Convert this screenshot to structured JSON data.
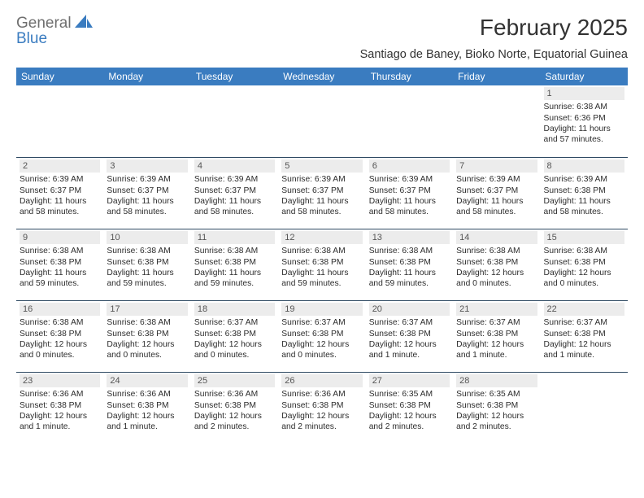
{
  "brand": {
    "word1": "General",
    "word2": "Blue"
  },
  "title": "February 2025",
  "subtitle": "Santiago de Baney, Bioko Norte, Equatorial Guinea",
  "colors": {
    "header_bg": "#3a7cc0",
    "header_text": "#ffffff",
    "week_border": "#2f4a63",
    "daynum_bg": "#ececec",
    "body_text": "#2c2c2c",
    "title_text": "#323232"
  },
  "dayHeaders": [
    "Sunday",
    "Monday",
    "Tuesday",
    "Wednesday",
    "Thursday",
    "Friday",
    "Saturday"
  ],
  "weeks": [
    [
      {
        "n": "",
        "l1": "",
        "l2": "",
        "l3": "",
        "l4": "",
        "empty": true
      },
      {
        "n": "",
        "l1": "",
        "l2": "",
        "l3": "",
        "l4": "",
        "empty": true
      },
      {
        "n": "",
        "l1": "",
        "l2": "",
        "l3": "",
        "l4": "",
        "empty": true
      },
      {
        "n": "",
        "l1": "",
        "l2": "",
        "l3": "",
        "l4": "",
        "empty": true
      },
      {
        "n": "",
        "l1": "",
        "l2": "",
        "l3": "",
        "l4": "",
        "empty": true
      },
      {
        "n": "",
        "l1": "",
        "l2": "",
        "l3": "",
        "l4": "",
        "empty": true
      },
      {
        "n": "1",
        "l1": "Sunrise: 6:38 AM",
        "l2": "Sunset: 6:36 PM",
        "l3": "Daylight: 11 hours",
        "l4": "and 57 minutes."
      }
    ],
    [
      {
        "n": "2",
        "l1": "Sunrise: 6:39 AM",
        "l2": "Sunset: 6:37 PM",
        "l3": "Daylight: 11 hours",
        "l4": "and 58 minutes."
      },
      {
        "n": "3",
        "l1": "Sunrise: 6:39 AM",
        "l2": "Sunset: 6:37 PM",
        "l3": "Daylight: 11 hours",
        "l4": "and 58 minutes."
      },
      {
        "n": "4",
        "l1": "Sunrise: 6:39 AM",
        "l2": "Sunset: 6:37 PM",
        "l3": "Daylight: 11 hours",
        "l4": "and 58 minutes."
      },
      {
        "n": "5",
        "l1": "Sunrise: 6:39 AM",
        "l2": "Sunset: 6:37 PM",
        "l3": "Daylight: 11 hours",
        "l4": "and 58 minutes."
      },
      {
        "n": "6",
        "l1": "Sunrise: 6:39 AM",
        "l2": "Sunset: 6:37 PM",
        "l3": "Daylight: 11 hours",
        "l4": "and 58 minutes."
      },
      {
        "n": "7",
        "l1": "Sunrise: 6:39 AM",
        "l2": "Sunset: 6:37 PM",
        "l3": "Daylight: 11 hours",
        "l4": "and 58 minutes."
      },
      {
        "n": "8",
        "l1": "Sunrise: 6:39 AM",
        "l2": "Sunset: 6:38 PM",
        "l3": "Daylight: 11 hours",
        "l4": "and 58 minutes."
      }
    ],
    [
      {
        "n": "9",
        "l1": "Sunrise: 6:38 AM",
        "l2": "Sunset: 6:38 PM",
        "l3": "Daylight: 11 hours",
        "l4": "and 59 minutes."
      },
      {
        "n": "10",
        "l1": "Sunrise: 6:38 AM",
        "l2": "Sunset: 6:38 PM",
        "l3": "Daylight: 11 hours",
        "l4": "and 59 minutes."
      },
      {
        "n": "11",
        "l1": "Sunrise: 6:38 AM",
        "l2": "Sunset: 6:38 PM",
        "l3": "Daylight: 11 hours",
        "l4": "and 59 minutes."
      },
      {
        "n": "12",
        "l1": "Sunrise: 6:38 AM",
        "l2": "Sunset: 6:38 PM",
        "l3": "Daylight: 11 hours",
        "l4": "and 59 minutes."
      },
      {
        "n": "13",
        "l1": "Sunrise: 6:38 AM",
        "l2": "Sunset: 6:38 PM",
        "l3": "Daylight: 11 hours",
        "l4": "and 59 minutes."
      },
      {
        "n": "14",
        "l1": "Sunrise: 6:38 AM",
        "l2": "Sunset: 6:38 PM",
        "l3": "Daylight: 12 hours",
        "l4": "and 0 minutes."
      },
      {
        "n": "15",
        "l1": "Sunrise: 6:38 AM",
        "l2": "Sunset: 6:38 PM",
        "l3": "Daylight: 12 hours",
        "l4": "and 0 minutes."
      }
    ],
    [
      {
        "n": "16",
        "l1": "Sunrise: 6:38 AM",
        "l2": "Sunset: 6:38 PM",
        "l3": "Daylight: 12 hours",
        "l4": "and 0 minutes."
      },
      {
        "n": "17",
        "l1": "Sunrise: 6:38 AM",
        "l2": "Sunset: 6:38 PM",
        "l3": "Daylight: 12 hours",
        "l4": "and 0 minutes."
      },
      {
        "n": "18",
        "l1": "Sunrise: 6:37 AM",
        "l2": "Sunset: 6:38 PM",
        "l3": "Daylight: 12 hours",
        "l4": "and 0 minutes."
      },
      {
        "n": "19",
        "l1": "Sunrise: 6:37 AM",
        "l2": "Sunset: 6:38 PM",
        "l3": "Daylight: 12 hours",
        "l4": "and 0 minutes."
      },
      {
        "n": "20",
        "l1": "Sunrise: 6:37 AM",
        "l2": "Sunset: 6:38 PM",
        "l3": "Daylight: 12 hours",
        "l4": "and 1 minute."
      },
      {
        "n": "21",
        "l1": "Sunrise: 6:37 AM",
        "l2": "Sunset: 6:38 PM",
        "l3": "Daylight: 12 hours",
        "l4": "and 1 minute."
      },
      {
        "n": "22",
        "l1": "Sunrise: 6:37 AM",
        "l2": "Sunset: 6:38 PM",
        "l3": "Daylight: 12 hours",
        "l4": "and 1 minute."
      }
    ],
    [
      {
        "n": "23",
        "l1": "Sunrise: 6:36 AM",
        "l2": "Sunset: 6:38 PM",
        "l3": "Daylight: 12 hours",
        "l4": "and 1 minute."
      },
      {
        "n": "24",
        "l1": "Sunrise: 6:36 AM",
        "l2": "Sunset: 6:38 PM",
        "l3": "Daylight: 12 hours",
        "l4": "and 1 minute."
      },
      {
        "n": "25",
        "l1": "Sunrise: 6:36 AM",
        "l2": "Sunset: 6:38 PM",
        "l3": "Daylight: 12 hours",
        "l4": "and 2 minutes."
      },
      {
        "n": "26",
        "l1": "Sunrise: 6:36 AM",
        "l2": "Sunset: 6:38 PM",
        "l3": "Daylight: 12 hours",
        "l4": "and 2 minutes."
      },
      {
        "n": "27",
        "l1": "Sunrise: 6:35 AM",
        "l2": "Sunset: 6:38 PM",
        "l3": "Daylight: 12 hours",
        "l4": "and 2 minutes."
      },
      {
        "n": "28",
        "l1": "Sunrise: 6:35 AM",
        "l2": "Sunset: 6:38 PM",
        "l3": "Daylight: 12 hours",
        "l4": "and 2 minutes."
      },
      {
        "n": "",
        "l1": "",
        "l2": "",
        "l3": "",
        "l4": "",
        "empty": true
      }
    ]
  ]
}
